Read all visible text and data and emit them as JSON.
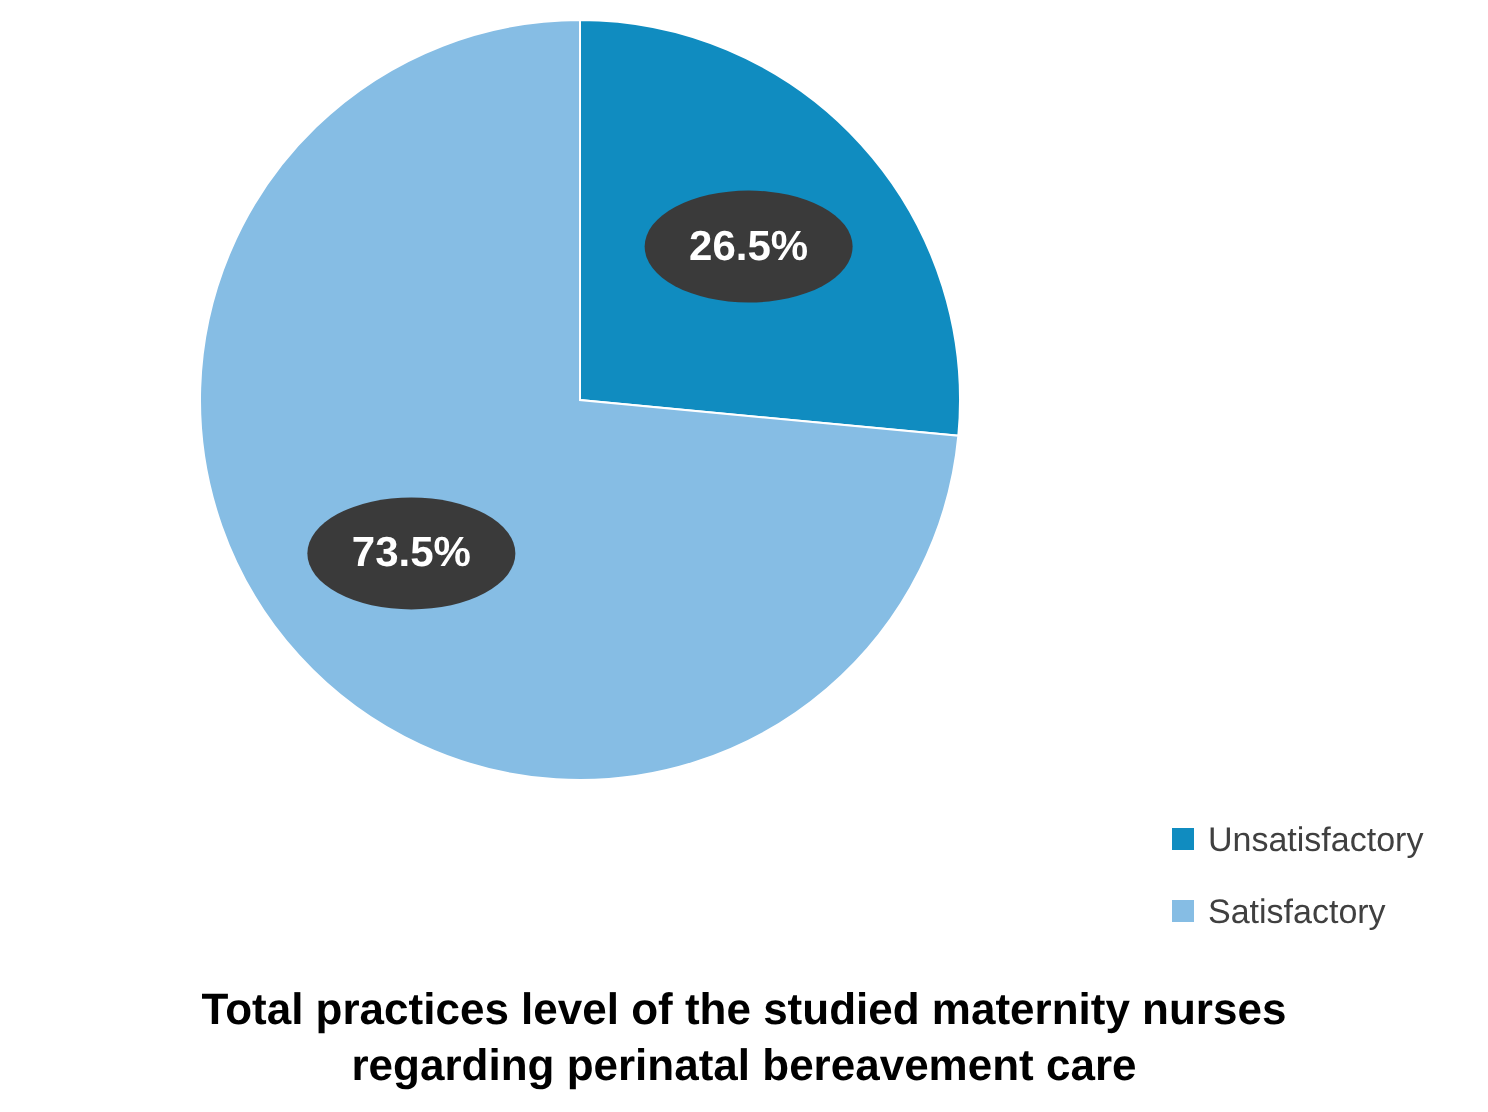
{
  "chart_data": {
    "type": "pie",
    "title": "Total practices level of the studied maternity nurses regarding perinatal bereavement care",
    "categories": [
      "Unsatisfactory",
      "Satisfactory"
    ],
    "values": [
      26.5,
      73.5
    ],
    "colors": [
      "#108cc0",
      "#86bde4"
    ],
    "value_labels": [
      "26.5%",
      "73.5%"
    ],
    "legend": "bottom right"
  }
}
